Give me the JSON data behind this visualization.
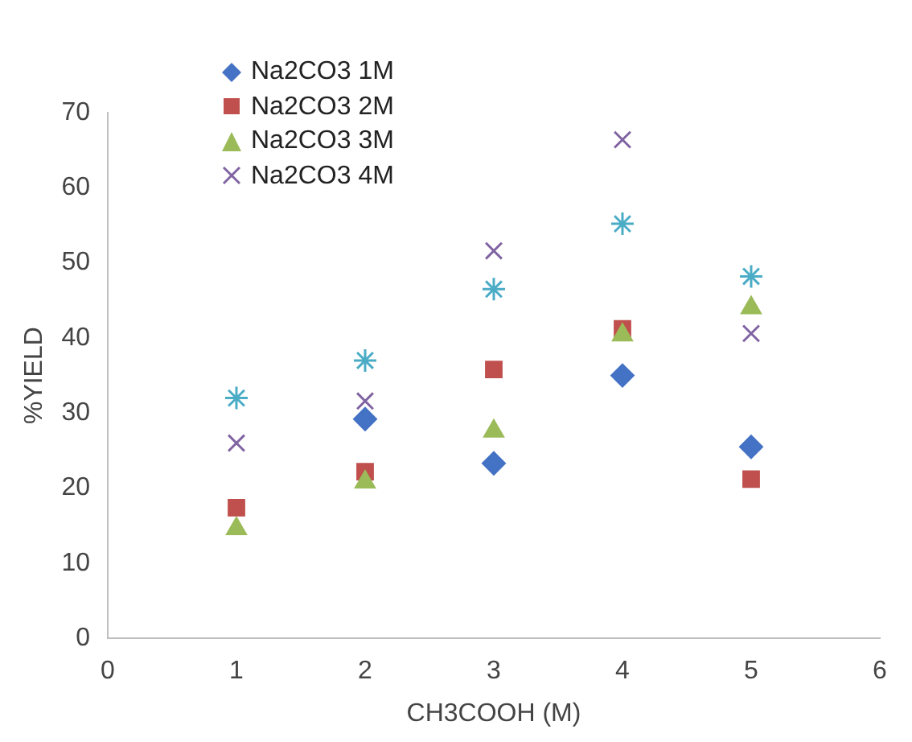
{
  "chart_data": {
    "type": "scatter",
    "xlabel": "CH3COOH (M)",
    "ylabel": "%YIELD",
    "x": [
      1,
      2,
      3,
      4,
      5
    ],
    "xlim": [
      0,
      6
    ],
    "xticks": [
      0,
      1,
      2,
      3,
      4,
      5,
      6
    ],
    "ylim": [
      0,
      70
    ],
    "yticks": [
      0,
      10,
      20,
      30,
      40,
      50,
      60,
      70
    ],
    "grid": false,
    "legend": "top left",
    "series": [
      {
        "name": "Na2CO3 1M",
        "color": "#4472c4",
        "marker": "diamond",
        "values": [
          null,
          29.2,
          23.3,
          35,
          25.5
        ]
      },
      {
        "name": "Na2CO3 2M",
        "color": "#c0504d",
        "marker": "square",
        "values": [
          17.4,
          22.2,
          35.8,
          41.2,
          21.2
        ]
      },
      {
        "name": "Na2CO3 3M",
        "color": "#9bbb59",
        "marker": "triangle",
        "values": [
          14.6,
          20.8,
          27.6,
          40.4,
          44
        ]
      },
      {
        "name": "Na2CO3 4M",
        "color": "#8064a2",
        "marker": "cross",
        "values": [
          26,
          31.6,
          51.6,
          66.4,
          40.6
        ]
      },
      {
        "color": "#4bacc6",
        "values": [
          32,
          37,
          46.5,
          55.2,
          48.2
        ]
      }
    ]
  }
}
